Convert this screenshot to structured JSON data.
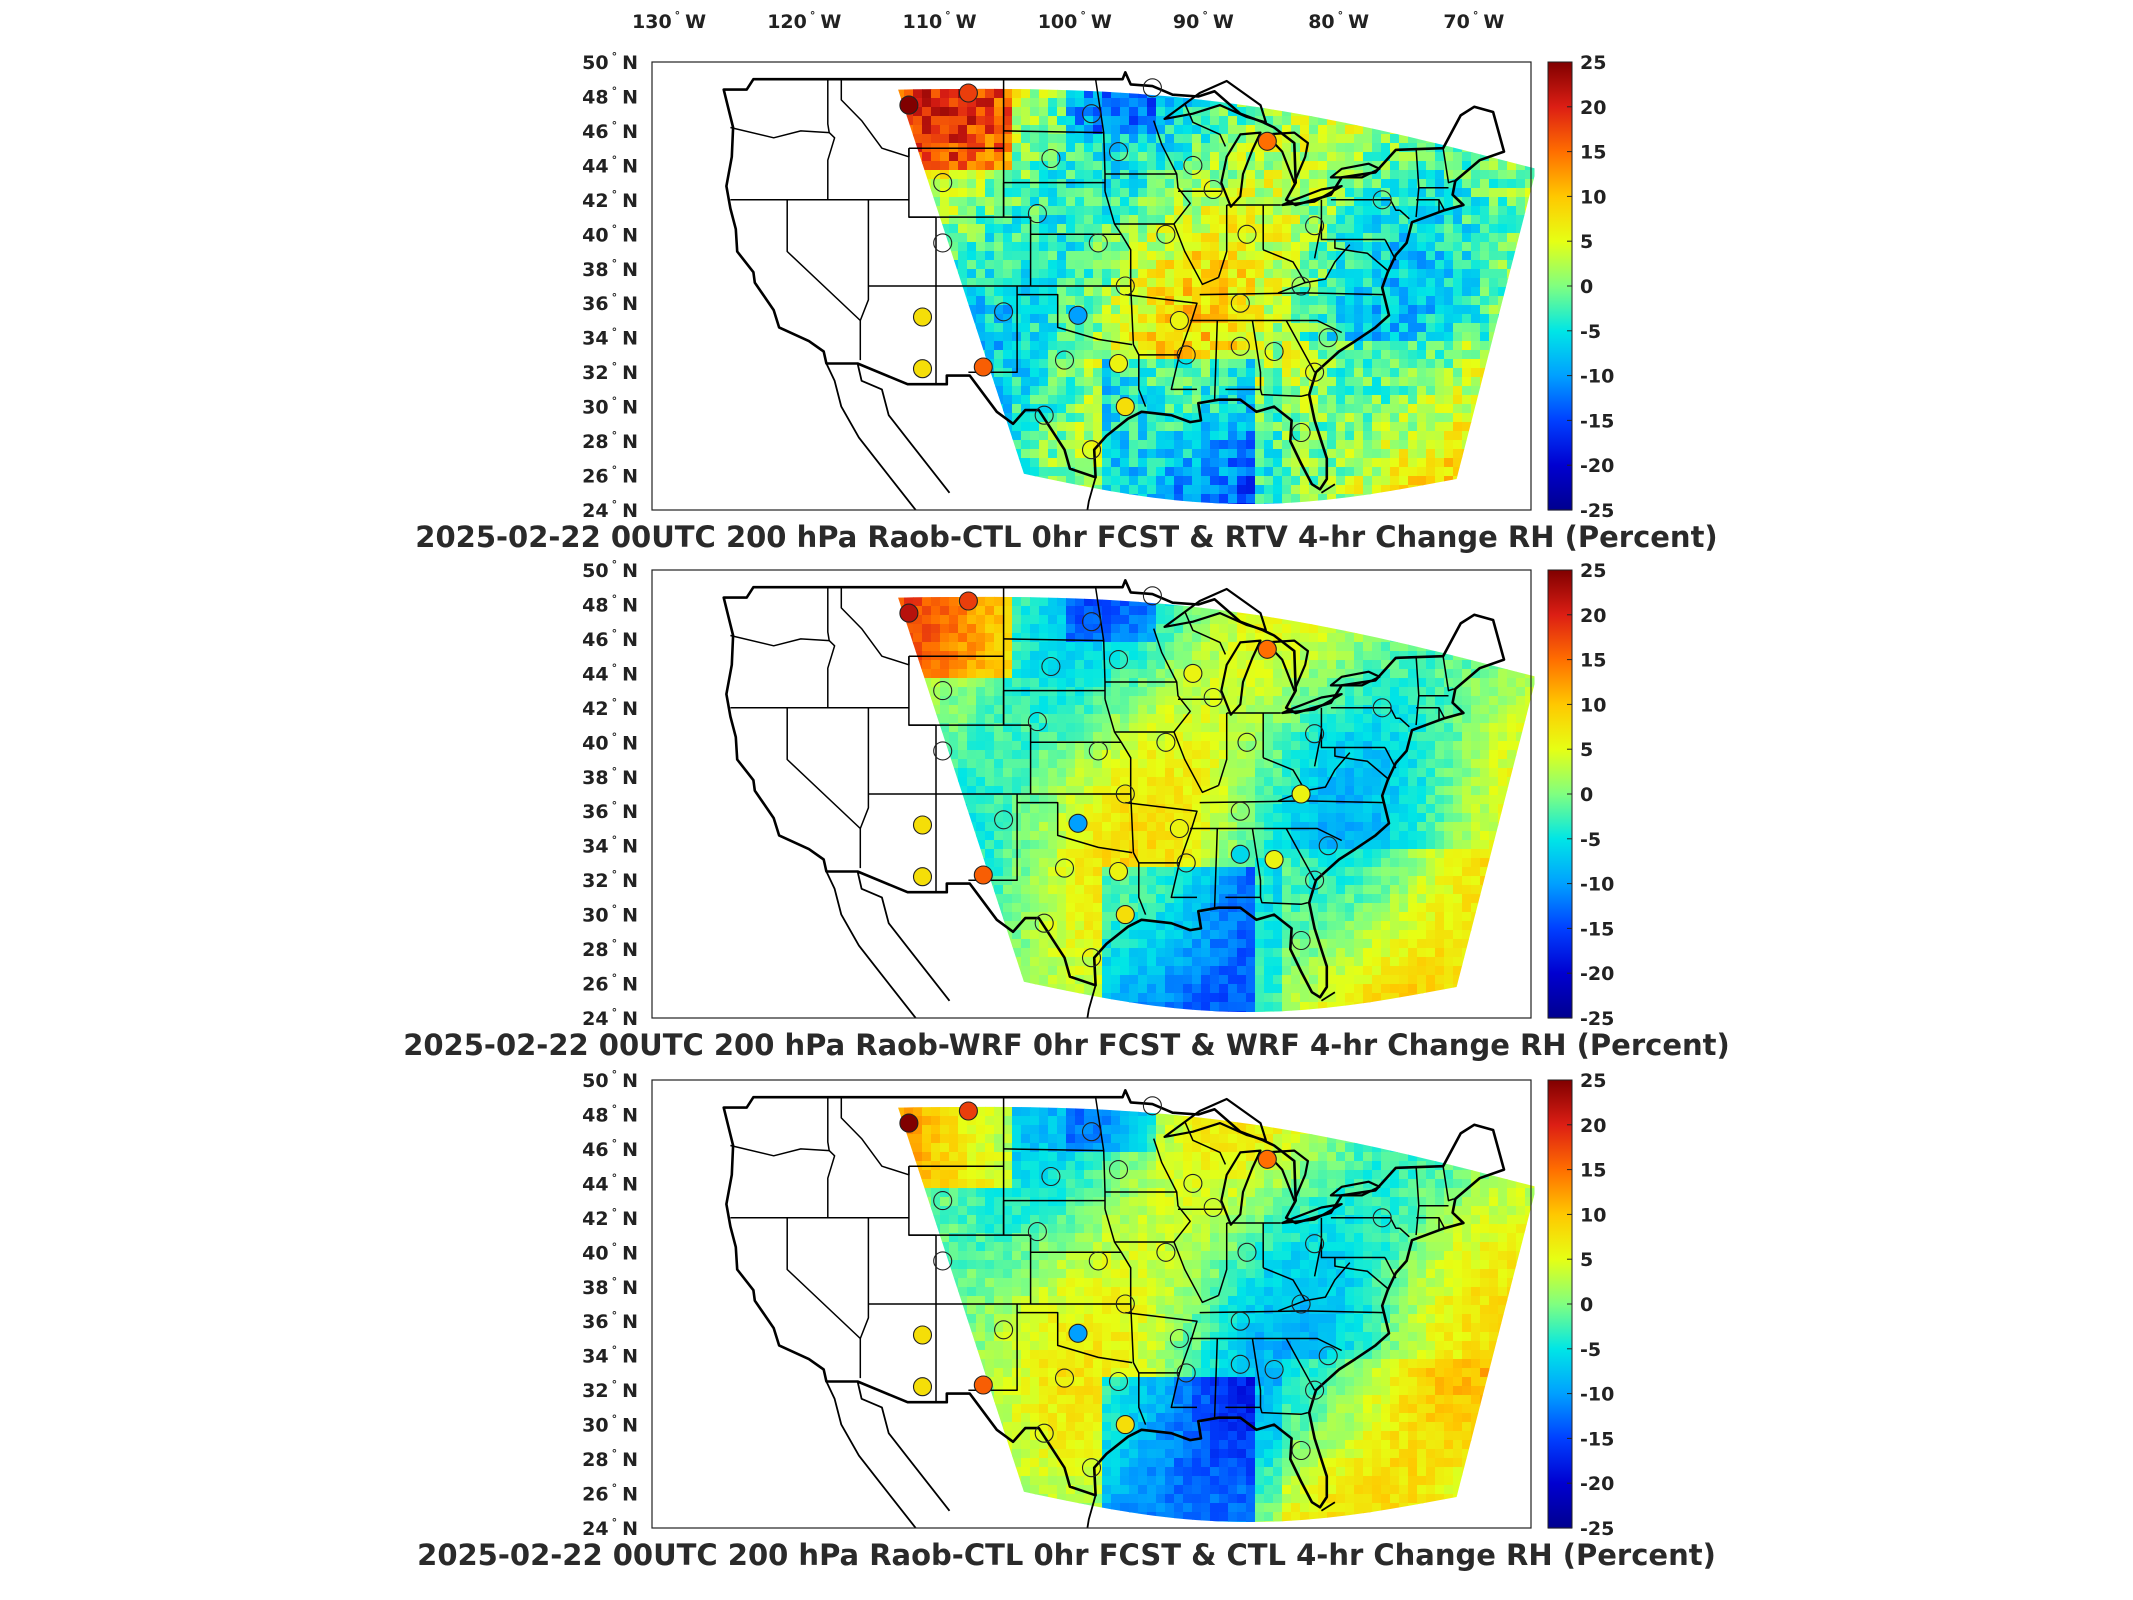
{
  "lon_labels": [
    "130",
    "120",
    "110",
    "100",
    "90",
    "80",
    "70"
  ],
  "lon_hemisphere": "W",
  "lat_labels": [
    "50",
    "48",
    "46",
    "44",
    "42",
    "40",
    "38",
    "36",
    "34",
    "32",
    "30",
    "28",
    "26",
    "24"
  ],
  "lat_hemisphere": "N",
  "degree_symbol": "°",
  "colorbar": {
    "ticks": [
      "25",
      "20",
      "15",
      "10",
      "5",
      "0",
      "-5",
      "-10",
      "-15",
      "-20",
      "-25"
    ],
    "colors": [
      "#7f0000",
      "#d71d14",
      "#ff5a00",
      "#ffb000",
      "#ffff00",
      "#80ff80",
      "#00d4ff",
      "#0080ff",
      "#0000d0",
      "#00008f"
    ]
  },
  "panels": [
    {
      "title": "2025-02-22 00UTC 200 hPa Raob-CTL 0hr FCST & RTV 4-hr Change RH (Percent)",
      "stations": [
        {
          "lon": -111.0,
          "lat": 47.5,
          "value": 25
        },
        {
          "lon": -106.6,
          "lat": 48.2,
          "value": 18
        },
        {
          "lon": -97.5,
          "lat": 47.0,
          "value": 0
        },
        {
          "lon": -93.0,
          "lat": 48.5,
          "value": 0
        },
        {
          "lon": -84.5,
          "lat": 45.4,
          "value": 15
        },
        {
          "lon": -108.5,
          "lat": 43.0,
          "value": 0
        },
        {
          "lon": -100.5,
          "lat": 44.4,
          "value": 0
        },
        {
          "lon": -95.5,
          "lat": 44.8,
          "value": 0
        },
        {
          "lon": -88.5,
          "lat": 42.6,
          "value": 0
        },
        {
          "lon": -90.0,
          "lat": 44.0,
          "value": 0
        },
        {
          "lon": -108.5,
          "lat": 39.5,
          "value": 0
        },
        {
          "lon": -101.5,
          "lat": 41.2,
          "value": 0
        },
        {
          "lon": -97.0,
          "lat": 39.5,
          "value": 0
        },
        {
          "lon": -92.0,
          "lat": 40.0,
          "value": 0
        },
        {
          "lon": -86.0,
          "lat": 40.0,
          "value": 0
        },
        {
          "lon": -81.0,
          "lat": 40.5,
          "value": 0
        },
        {
          "lon": -76.0,
          "lat": 42.0,
          "value": 0
        },
        {
          "lon": -110.0,
          "lat": 35.2,
          "value": 8
        },
        {
          "lon": -104.0,
          "lat": 35.5,
          "value": 0
        },
        {
          "lon": -98.5,
          "lat": 35.3,
          "value": -10
        },
        {
          "lon": -95.0,
          "lat": 37.0,
          "value": 0
        },
        {
          "lon": -91.0,
          "lat": 35.0,
          "value": 6
        },
        {
          "lon": -86.5,
          "lat": 36.0,
          "value": 0
        },
        {
          "lon": -82.0,
          "lat": 37.0,
          "value": 0
        },
        {
          "lon": -110.0,
          "lat": 32.2,
          "value": 8
        },
        {
          "lon": -105.5,
          "lat": 32.3,
          "value": 16
        },
        {
          "lon": -99.5,
          "lat": 32.7,
          "value": 0
        },
        {
          "lon": -95.5,
          "lat": 32.5,
          "value": 6
        },
        {
          "lon": -90.5,
          "lat": 33.0,
          "value": 0
        },
        {
          "lon": -86.5,
          "lat": 33.5,
          "value": 0
        },
        {
          "lon": -84.0,
          "lat": 33.2,
          "value": 0
        },
        {
          "lon": -80.0,
          "lat": 34.0,
          "value": 0
        },
        {
          "lon": -95.0,
          "lat": 30.0,
          "value": 8
        },
        {
          "lon": -101.0,
          "lat": 29.5,
          "value": 0
        },
        {
          "lon": -97.5,
          "lat": 27.5,
          "value": 0
        },
        {
          "lon": -82.0,
          "lat": 28.5,
          "value": 0
        },
        {
          "lon": -81.0,
          "lat": 32.0,
          "value": 0
        }
      ]
    },
    {
      "title": "2025-02-22 00UTC 200 hPa Raob-WRF 0hr FCST & WRF 4-hr Change RH (Percent)",
      "stations": [
        {
          "lon": -111.0,
          "lat": 47.5,
          "value": 22
        },
        {
          "lon": -106.6,
          "lat": 48.2,
          "value": 18
        },
        {
          "lon": -97.5,
          "lat": 47.0,
          "value": 0
        },
        {
          "lon": -93.0,
          "lat": 48.5,
          "value": 0
        },
        {
          "lon": -84.5,
          "lat": 45.4,
          "value": 15
        },
        {
          "lon": -108.5,
          "lat": 43.0,
          "value": 0
        },
        {
          "lon": -100.5,
          "lat": 44.4,
          "value": 0
        },
        {
          "lon": -95.5,
          "lat": 44.8,
          "value": 0
        },
        {
          "lon": -88.5,
          "lat": 42.6,
          "value": 0
        },
        {
          "lon": -90.0,
          "lat": 44.0,
          "value": 6
        },
        {
          "lon": -108.5,
          "lat": 39.5,
          "value": 0
        },
        {
          "lon": -101.5,
          "lat": 41.2,
          "value": 0
        },
        {
          "lon": -97.0,
          "lat": 39.5,
          "value": 0
        },
        {
          "lon": -92.0,
          "lat": 40.0,
          "value": 0
        },
        {
          "lon": -86.0,
          "lat": 40.0,
          "value": 0
        },
        {
          "lon": -81.0,
          "lat": 40.5,
          "value": 0
        },
        {
          "lon": -76.0,
          "lat": 42.0,
          "value": 0
        },
        {
          "lon": -110.0,
          "lat": 35.2,
          "value": 8
        },
        {
          "lon": -104.0,
          "lat": 35.5,
          "value": 0
        },
        {
          "lon": -98.5,
          "lat": 35.3,
          "value": -10
        },
        {
          "lon": -95.0,
          "lat": 37.0,
          "value": 0
        },
        {
          "lon": -91.0,
          "lat": 35.0,
          "value": 6
        },
        {
          "lon": -86.5,
          "lat": 36.0,
          "value": 0
        },
        {
          "lon": -82.0,
          "lat": 37.0,
          "value": 6
        },
        {
          "lon": -110.0,
          "lat": 32.2,
          "value": 8
        },
        {
          "lon": -105.5,
          "lat": 32.3,
          "value": 16
        },
        {
          "lon": -99.5,
          "lat": 32.7,
          "value": 0
        },
        {
          "lon": -95.5,
          "lat": 32.5,
          "value": 6
        },
        {
          "lon": -90.5,
          "lat": 33.0,
          "value": 0
        },
        {
          "lon": -86.5,
          "lat": 33.5,
          "value": -6
        },
        {
          "lon": -84.0,
          "lat": 33.2,
          "value": 6
        },
        {
          "lon": -80.0,
          "lat": 34.0,
          "value": 0
        },
        {
          "lon": -95.0,
          "lat": 30.0,
          "value": 8
        },
        {
          "lon": -101.0,
          "lat": 29.5,
          "value": 0
        },
        {
          "lon": -97.5,
          "lat": 27.5,
          "value": 0
        },
        {
          "lon": -82.0,
          "lat": 28.5,
          "value": 0
        },
        {
          "lon": -81.0,
          "lat": 32.0,
          "value": 0
        }
      ]
    },
    {
      "title": "2025-02-22 00UTC 200 hPa Raob-CTL 0hr FCST & CTL 4-hr Change RH (Percent)",
      "stations": [
        {
          "lon": -111.0,
          "lat": 47.5,
          "value": 25
        },
        {
          "lon": -106.6,
          "lat": 48.2,
          "value": 18
        },
        {
          "lon": -97.5,
          "lat": 47.0,
          "value": 0
        },
        {
          "lon": -93.0,
          "lat": 48.5,
          "value": 0
        },
        {
          "lon": -84.5,
          "lat": 45.4,
          "value": 15
        },
        {
          "lon": -108.5,
          "lat": 43.0,
          "value": 0
        },
        {
          "lon": -100.5,
          "lat": 44.4,
          "value": 0
        },
        {
          "lon": -95.5,
          "lat": 44.8,
          "value": 0
        },
        {
          "lon": -88.5,
          "lat": 42.6,
          "value": 0
        },
        {
          "lon": -90.0,
          "lat": 44.0,
          "value": 0
        },
        {
          "lon": -108.5,
          "lat": 39.5,
          "value": 0
        },
        {
          "lon": -101.5,
          "lat": 41.2,
          "value": 0
        },
        {
          "lon": -97.0,
          "lat": 39.5,
          "value": 0
        },
        {
          "lon": -92.0,
          "lat": 40.0,
          "value": 0
        },
        {
          "lon": -86.0,
          "lat": 40.0,
          "value": 0
        },
        {
          "lon": -81.0,
          "lat": 40.5,
          "value": 0
        },
        {
          "lon": -76.0,
          "lat": 42.0,
          "value": 0
        },
        {
          "lon": -110.0,
          "lat": 35.2,
          "value": 8
        },
        {
          "lon": -104.0,
          "lat": 35.5,
          "value": 0
        },
        {
          "lon": -98.5,
          "lat": 35.3,
          "value": -10
        },
        {
          "lon": -95.0,
          "lat": 37.0,
          "value": 0
        },
        {
          "lon": -91.0,
          "lat": 35.0,
          "value": 0
        },
        {
          "lon": -86.5,
          "lat": 36.0,
          "value": 0
        },
        {
          "lon": -82.0,
          "lat": 37.0,
          "value": 0
        },
        {
          "lon": -110.0,
          "lat": 32.2,
          "value": 8
        },
        {
          "lon": -105.5,
          "lat": 32.3,
          "value": 16
        },
        {
          "lon": -99.5,
          "lat": 32.7,
          "value": 0
        },
        {
          "lon": -95.5,
          "lat": 32.5,
          "value": 0
        },
        {
          "lon": -90.5,
          "lat": 33.0,
          "value": 0
        },
        {
          "lon": -86.5,
          "lat": 33.5,
          "value": 0
        },
        {
          "lon": -84.0,
          "lat": 33.2,
          "value": 0
        },
        {
          "lon": -80.0,
          "lat": 34.0,
          "value": 0
        },
        {
          "lon": -95.0,
          "lat": 30.0,
          "value": 8
        },
        {
          "lon": -101.0,
          "lat": 29.5,
          "value": 0
        },
        {
          "lon": -97.5,
          "lat": 27.5,
          "value": 0
        },
        {
          "lon": -82.0,
          "lat": 28.5,
          "value": 0
        },
        {
          "lon": -81.0,
          "lat": 32.0,
          "value": 0
        }
      ]
    }
  ]
}
